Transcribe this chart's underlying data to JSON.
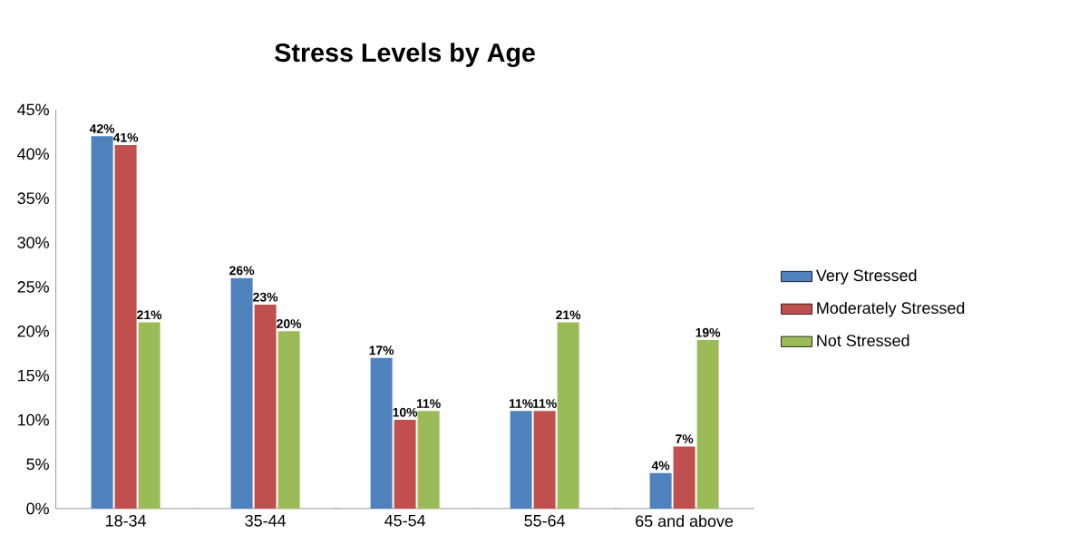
{
  "chart_data": {
    "type": "bar",
    "title": "Stress Levels by Age",
    "categories": [
      "18-34",
      "35-44",
      "45-54",
      "55-64",
      "65 and above"
    ],
    "series": [
      {
        "name": "Very Stressed",
        "color": "#4f81bd",
        "values": [
          42,
          26,
          17,
          11,
          4
        ],
        "value_labels": [
          "42%",
          "26%",
          "17%",
          "11%",
          "4%"
        ]
      },
      {
        "name": "Moderately Stressed",
        "color": "#c0504d",
        "values": [
          41,
          23,
          10,
          11,
          7
        ],
        "value_labels": [
          "41%",
          "23%",
          "10%",
          "11%",
          "7%"
        ]
      },
      {
        "name": "Not Stressed",
        "color": "#9bbb59",
        "values": [
          21,
          20,
          11,
          21,
          19
        ],
        "value_labels": [
          "21%",
          "20%",
          "11%",
          "21%",
          "19%"
        ]
      }
    ],
    "ylim": [
      0,
      45
    ],
    "yticks": [
      {
        "value": 0,
        "label": "0%"
      },
      {
        "value": 5,
        "label": "5%"
      },
      {
        "value": 10,
        "label": "10%"
      },
      {
        "value": 15,
        "label": "15%"
      },
      {
        "value": 20,
        "label": "20%"
      },
      {
        "value": 25,
        "label": "25%"
      },
      {
        "value": 30,
        "label": "30%"
      },
      {
        "value": 35,
        "label": "35%"
      },
      {
        "value": 40,
        "label": "40%"
      },
      {
        "value": 45,
        "label": "45%"
      }
    ],
    "grid": false,
    "legend": "right"
  }
}
